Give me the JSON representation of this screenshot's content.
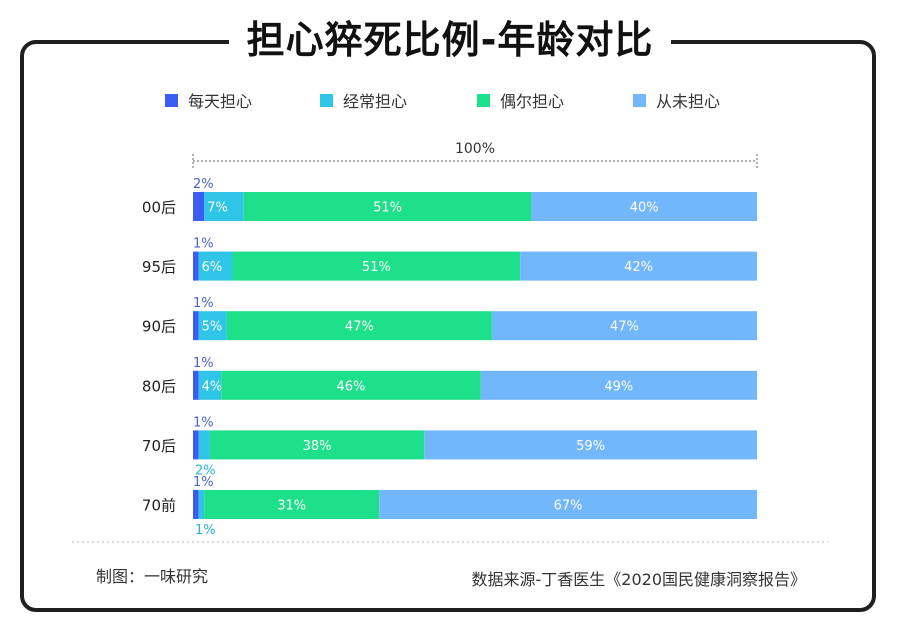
{
  "page_title": "担心猝死比例-年龄对比",
  "colors": {
    "daily": "#3c5df2",
    "often": "#2ec5e6",
    "sometimes": "#1edf8a",
    "never": "#72b6fb"
  },
  "chart_data": {
    "type": "bar",
    "orientation": "horizontal",
    "stacked": true,
    "title": "担心猝死比例-年龄对比",
    "total_label": "100%",
    "categories": [
      "00后",
      "95后",
      "90后",
      "80后",
      "70后",
      "70前"
    ],
    "series": [
      {
        "name": "每天担心",
        "values": [
          2,
          1,
          1,
          1,
          1,
          1
        ]
      },
      {
        "name": "经常担心",
        "values": [
          7,
          6,
          5,
          4,
          2,
          1
        ]
      },
      {
        "name": "偶尔担心",
        "values": [
          51,
          51,
          47,
          46,
          38,
          31
        ]
      },
      {
        "name": "从未担心",
        "values": [
          40,
          42,
          47,
          49,
          59,
          67
        ]
      }
    ],
    "value_labels": [
      [
        "2%",
        "7%",
        "51%",
        "40%"
      ],
      [
        "1%",
        "6%",
        "51%",
        "42%"
      ],
      [
        "1%",
        "5%",
        "47%",
        "47%"
      ],
      [
        "1%",
        "4%",
        "46%",
        "49%"
      ],
      [
        "1%",
        "2%",
        "38%",
        "59%"
      ],
      [
        "1%",
        "1%",
        "31%",
        "67%"
      ]
    ],
    "legend_position": "top",
    "xlim": [
      0,
      100
    ]
  },
  "footer": {
    "credit": "制图：一味研究",
    "source": "数据来源-丁香医生《2020国民健康洞察报告》"
  }
}
